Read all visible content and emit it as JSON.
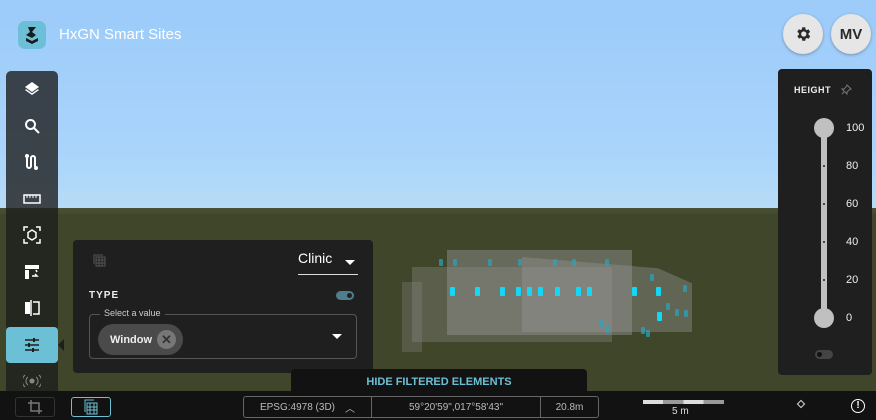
{
  "app": {
    "title": "HxGN Smart Sites",
    "logo_icon": "hxgn-logo"
  },
  "header": {
    "settings_icon": "gear-icon",
    "avatar_initials": "MV"
  },
  "sidebar": {
    "items": [
      {
        "icon": "layers-icon"
      },
      {
        "icon": "search-icon"
      },
      {
        "icon": "route-icon"
      },
      {
        "icon": "ruler-icon"
      },
      {
        "icon": "3d-box-focus-icon"
      },
      {
        "icon": "swap-icon"
      },
      {
        "icon": "compare-icon"
      },
      {
        "icon": "filter-sliders-icon",
        "active": true
      },
      {
        "icon": "broadcast-icon"
      }
    ]
  },
  "filter_panel": {
    "model_select": "Clinic",
    "type_label": "TYPE",
    "type_toggle_on": true,
    "select_label": "Select a value",
    "chips": [
      "Window"
    ],
    "hide_button": "HIDE FILTERED ELEMENTS"
  },
  "height_panel": {
    "title": "HEIGHT",
    "ticks": [
      "100",
      "80",
      "60",
      "40",
      "20",
      "0"
    ],
    "range_min": 0,
    "range_max": 100,
    "toggle_on": false
  },
  "statusbar": {
    "crs": "EPSG:4978 (3D)",
    "coordinates": "59°20'59\",017°58'43\"",
    "elevation": "20.8m",
    "scale": "5 m"
  },
  "colors": {
    "accent": "#6cc0d6",
    "window_highlight": "#12d8f5",
    "panel": "#1f1f1f"
  }
}
